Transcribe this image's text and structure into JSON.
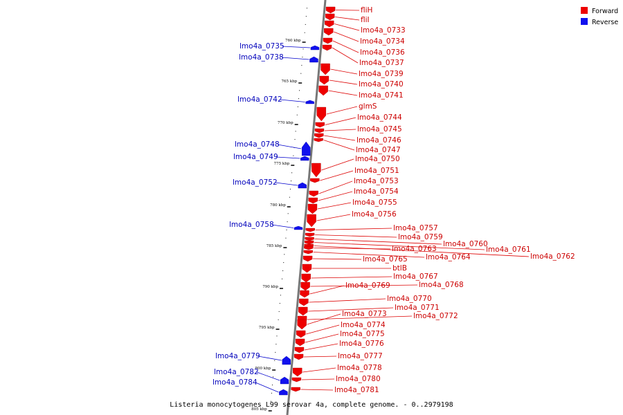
{
  "legend": {
    "forward_label": "Forward",
    "reverse_label": "Reverse",
    "forward_color": "#ee0000",
    "reverse_color": "#1111ee"
  },
  "caption": "Listeria monocytogenes L99 serovar 4a, complete genome. - 0..2979198",
  "ticks": [
    "760 kbp",
    "765 kbp",
    "770 kbp",
    "775 kbp",
    "780 kbp",
    "785 kbp",
    "790 kbp",
    "795 kbp",
    "800 kbp",
    "805 kbp"
  ],
  "forward_genes": [
    "fliH",
    "fliI",
    "lmo4a_0733",
    "lmo4a_0734",
    "lmo4a_0736",
    "lmo4a_0737",
    "lmo4a_0739",
    "lmo4a_0740",
    "lmo4a_0741",
    "glmS",
    "lmo4a_0744",
    "lmo4a_0745",
    "lmo4a_0746",
    "lmo4a_0747",
    "lmo4a_0750",
    "lmo4a_0751",
    "lmo4a_0753",
    "lmo4a_0754",
    "lmo4a_0755",
    "lmo4a_0756",
    "lmo4a_0757",
    "lmo4a_0759",
    "lmo4a_0760",
    "lmo4a_0761",
    "lmo4a_0762",
    "lmo4a_0763",
    "lmo4a_0764",
    "lmo4a_0765",
    "btlB",
    "lmo4a_0767",
    "lmo4a_0768",
    "lmo4a_0769",
    "lmo4a_0770",
    "lmo4a_0771",
    "lmo4a_0772",
    "lmo4a_0773",
    "lmo4a_0774",
    "lmo4a_0775",
    "lmo4a_0776",
    "lmo4a_0777",
    "lmo4a_0778",
    "lmo4a_0780",
    "lmo4a_0781"
  ],
  "reverse_genes": [
    "lmo4a_0735",
    "lmo4a_0738",
    "lmo4a_0742",
    "lmo4a_0748",
    "lmo4a_0749",
    "lmo4a_0752",
    "lmo4a_0758",
    "lmo4a_0779",
    "lmo4a_0782",
    "lmo4a_0784"
  ]
}
